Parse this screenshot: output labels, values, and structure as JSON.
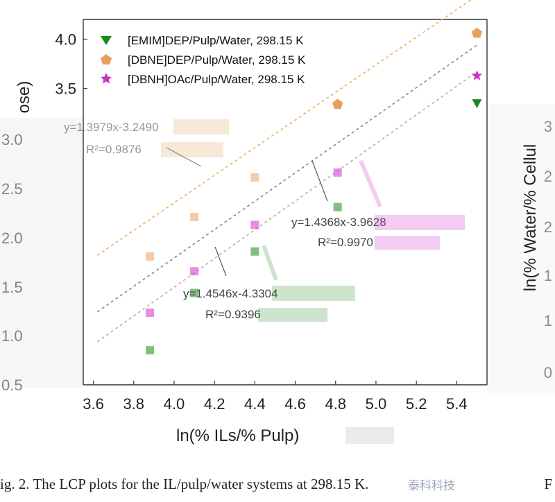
{
  "chart_data": {
    "type": "scatter",
    "xlabel": "ln(% ILs/% Pulp)",
    "ylabel_left_partial": "ose)",
    "ylabel_right_partial": "ln(% Water/% Cellul",
    "xlim": [
      3.55,
      5.55
    ],
    "ylim": [
      0.5,
      4.2
    ],
    "x_ticks": [
      "3.6",
      "3.8",
      "4.0",
      "4.2",
      "4.4",
      "4.6",
      "4.8",
      "5.0",
      "5.2",
      "5.4"
    ],
    "y_ticks_top": [
      "3.5",
      "4.0"
    ],
    "y_ticks_left_faded": [
      "0.5",
      "1.0",
      "1.5",
      "2.0",
      "2.5",
      "3.0"
    ],
    "y_ticks_right_faded": [
      "0",
      "1",
      "1",
      "2",
      "2",
      "3"
    ],
    "series": [
      {
        "name": "[EMIM]DEP/Pulp/Water, 298.15 K",
        "color": "#1a8a1a",
        "marker": "triangle-down",
        "x": [
          5.5
        ],
        "y": [
          3.35
        ]
      },
      {
        "name": "[DBNE]DEP/Pulp/Water, 298.15 K",
        "color": "#e8a060",
        "marker": "pentagon",
        "x": [
          4.81,
          5.5
        ],
        "y": [
          3.34,
          4.06
        ]
      },
      {
        "name": "[DBNH]OAc/Pulp/Water, 298.15 K",
        "color": "#cc33cc",
        "marker": "star",
        "x": [
          5.5
        ],
        "y": [
          3.63
        ]
      }
    ],
    "fit_lines": [
      {
        "color": "#e8b060",
        "slope": 1.3979,
        "intercept": -3.249,
        "x_range": [
          3.62,
          5.5
        ]
      },
      {
        "color": "#888888",
        "slope": 1.4368,
        "intercept": -3.9628,
        "x_range": [
          3.62,
          5.5
        ]
      },
      {
        "color": "#c8a8a8",
        "slope": 1.4546,
        "intercept": -4.3304,
        "x_range": [
          3.62,
          5.5
        ]
      }
    ],
    "faded_points": [
      {
        "series": "[DBNE]DEP",
        "x": [
          3.88,
          4.1,
          4.4
        ],
        "y": [
          1.8,
          2.2,
          2.6
        ]
      },
      {
        "series": "[DBNH]OAc",
        "x": [
          3.88,
          4.1,
          4.4,
          4.81
        ],
        "y": [
          1.23,
          1.65,
          2.12,
          2.65
        ]
      },
      {
        "series": "[EMIM]DEP",
        "x": [
          3.88,
          4.1,
          4.4,
          4.81
        ],
        "y": [
          0.85,
          1.43,
          1.85,
          2.3
        ]
      }
    ],
    "annotations": [
      "y=1.3979x-3.2490",
      "R²=0.9876",
      "y=1.4368x-3.9628",
      "R²=0.9970",
      "y=1.4546x-4.3304",
      "R²=0.9396"
    ]
  },
  "caption": {
    "text": "ig. 2. The LCP plots for the IL/pulp/water systems at 298.15 K.",
    "watermark": "泰科科技",
    "trailing": "F"
  }
}
